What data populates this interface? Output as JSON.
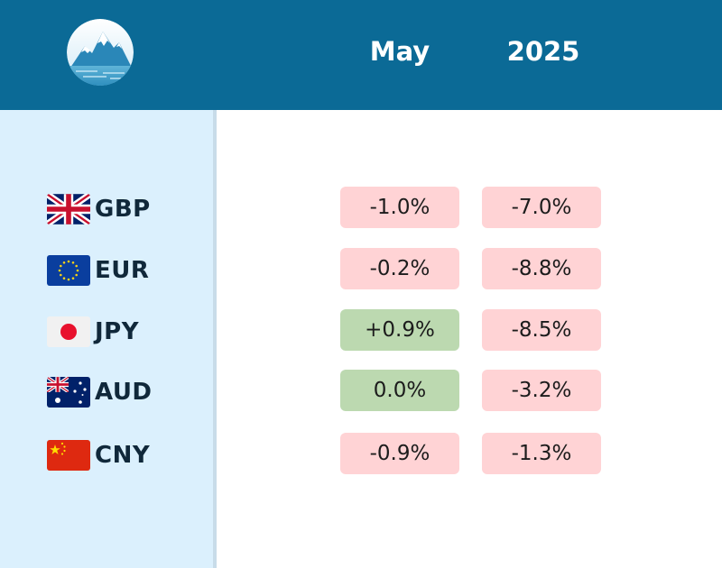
{
  "header": {
    "col_month": "May",
    "col_year": "2025"
  },
  "colors": {
    "header_bg": "#0b6a96",
    "sidebar_bg": "#dbf0fd",
    "negative_bg": "#ffd3d5",
    "positive_bg": "#bcd9b0"
  },
  "rows": [
    {
      "code": "GBP",
      "flag": "uk-flag-icon",
      "month": "-1.0%",
      "year": "-7.0%",
      "month_tone": "negative",
      "year_tone": "negative"
    },
    {
      "code": "EUR",
      "flag": "eu-flag-icon",
      "month": "-0.2%",
      "year": "-8.8%",
      "month_tone": "negative",
      "year_tone": "negative"
    },
    {
      "code": "JPY",
      "flag": "japan-flag-icon",
      "month": "+0.9%",
      "year": "-8.5%",
      "month_tone": "positive",
      "year_tone": "negative"
    },
    {
      "code": "AUD",
      "flag": "australia-flag-icon",
      "month": "0.0%",
      "year": "-3.2%",
      "month_tone": "positive",
      "year_tone": "negative"
    },
    {
      "code": "CNY",
      "flag": "china-flag-icon",
      "month": "-0.9%",
      "year": "-1.3%",
      "month_tone": "negative",
      "year_tone": "negative"
    }
  ]
}
